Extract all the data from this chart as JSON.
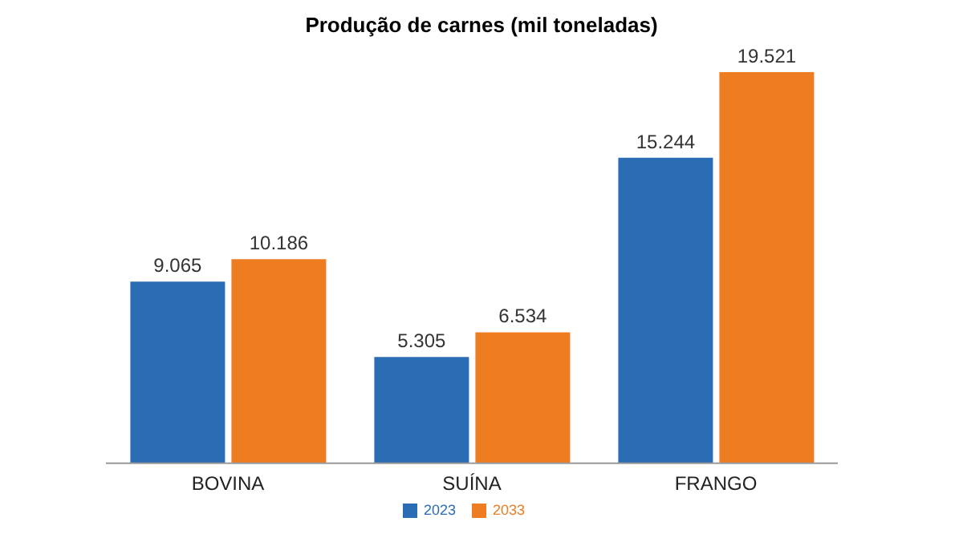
{
  "chart_data": {
    "type": "bar",
    "title": "Produção de carnes (mil toneladas)",
    "categories": [
      "BOVINA",
      "SUÍNA",
      "FRANGO"
    ],
    "series": [
      {
        "name": "2023",
        "color": "#2a6db5",
        "values": [
          9065,
          5305,
          15244
        ],
        "value_labels": [
          "9.065",
          "5.305",
          "15.244"
        ]
      },
      {
        "name": "2033",
        "color": "#ee7d22",
        "values": [
          10186,
          6534,
          19521
        ],
        "value_labels": [
          "10.186",
          "6.534",
          "19.521"
        ]
      }
    ],
    "legend": "bottom",
    "grid": false
  }
}
